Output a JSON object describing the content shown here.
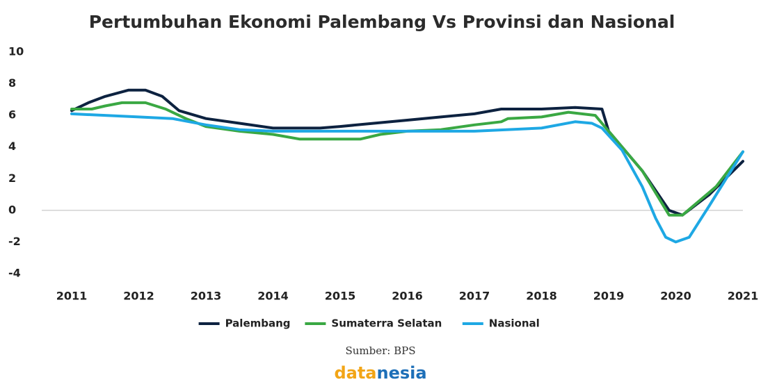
{
  "chart_data": {
    "type": "line",
    "title": "Pertumbuhan Ekonomi Palembang Vs Provinsi dan Nasional",
    "xlim": [
      2011,
      2021
    ],
    "xticks": [
      2011,
      2012,
      2013,
      2014,
      2015,
      2016,
      2017,
      2018,
      2019,
      2020,
      2021
    ],
    "ylim": [
      -4,
      10
    ],
    "yticks": [
      10,
      8,
      6,
      4,
      2,
      0,
      -2,
      -4
    ],
    "grid": false,
    "legend": "bottom",
    "source": "Sumber: BPS",
    "logo": [
      "data",
      "nesia"
    ],
    "series": [
      {
        "name": "Palembang",
        "color": "#0d2240",
        "x": [
          2011,
          2011.25,
          2011.5,
          2011.85,
          2012.1,
          2012.35,
          2012.6,
          2013,
          2013.5,
          2014,
          2014.7,
          2015,
          2015.5,
          2016,
          2016.5,
          2017,
          2017.4,
          2018,
          2018.5,
          2018.9,
          2019,
          2019.5,
          2019.9,
          2020.1,
          2020.5,
          2021
        ],
        "values": [
          6.3,
          6.8,
          7.2,
          7.6,
          7.6,
          7.2,
          6.3,
          5.8,
          5.5,
          5.2,
          5.2,
          5.3,
          5.5,
          5.7,
          5.9,
          6.1,
          6.4,
          6.4,
          6.5,
          6.4,
          5.0,
          2.5,
          0,
          -0.3,
          1.0,
          3.1
        ]
      },
      {
        "name": "Sumaterra Selatan",
        "color": "#3aa843",
        "x": [
          2011,
          2011.3,
          2011.5,
          2011.75,
          2012.1,
          2012.4,
          2012.7,
          2013,
          2013.5,
          2014,
          2014.4,
          2015.3,
          2015.6,
          2016,
          2016.5,
          2017,
          2017.4,
          2017.5,
          2018,
          2018.4,
          2018.8,
          2019,
          2019.5,
          2019.9,
          2020.1,
          2020.6,
          2021
        ],
        "values": [
          6.4,
          6.4,
          6.6,
          6.8,
          6.8,
          6.4,
          5.8,
          5.3,
          5.0,
          4.8,
          4.5,
          4.5,
          4.8,
          5.0,
          5.1,
          5.4,
          5.6,
          5.8,
          5.9,
          6.2,
          6.0,
          5.0,
          2.5,
          -0.3,
          -0.3,
          1.5,
          3.7
        ]
      },
      {
        "name": "Nasional",
        "color": "#1ea8e4",
        "x": [
          2011,
          2012,
          2012.5,
          2013,
          2013.5,
          2014,
          2015,
          2016,
          2017,
          2018,
          2018.5,
          2018.75,
          2018.9,
          2019.2,
          2019.5,
          2019.7,
          2019.85,
          2020,
          2020.2,
          2020.5,
          2021
        ],
        "values": [
          6.1,
          5.9,
          5.8,
          5.4,
          5.1,
          5.0,
          5.0,
          5.0,
          5.0,
          5.2,
          5.6,
          5.5,
          5.2,
          3.8,
          1.5,
          -0.5,
          -1.7,
          -2.0,
          -1.7,
          0.3,
          3.7
        ]
      }
    ]
  }
}
